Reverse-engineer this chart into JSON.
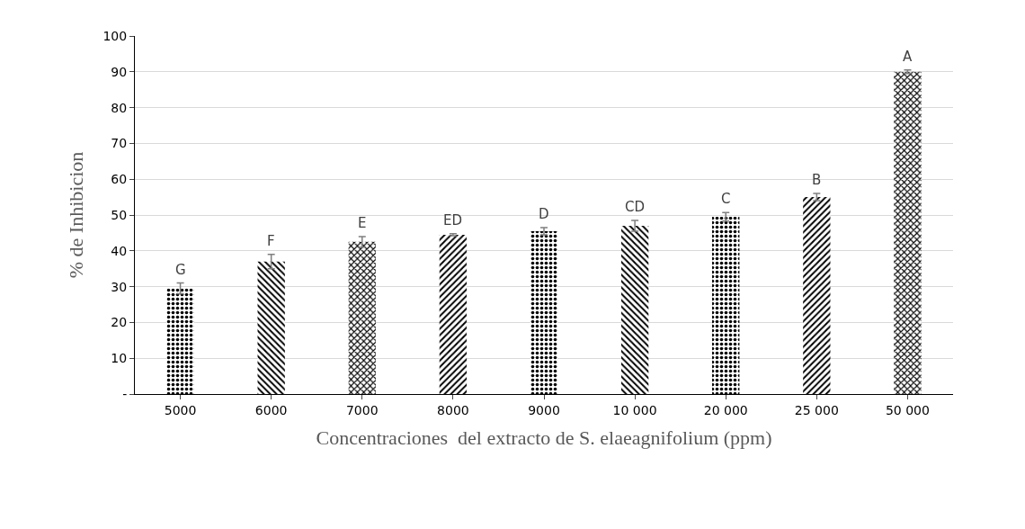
{
  "chart_data": {
    "type": "bar",
    "ylabel": "% de Inhibicion",
    "xlabel": "Concentraciones  del extracto de S. elaeagnifolium (ppm)",
    "categories": [
      "5000",
      "6000",
      "7000",
      "8000",
      "9000",
      "10 000",
      "20 000",
      "25 000",
      "50 000"
    ],
    "values": [
      29.5,
      37,
      42.5,
      44.5,
      45.5,
      47,
      49.5,
      55,
      90
    ],
    "errors": [
      1.5,
      2,
      1.5,
      0.3,
      1,
      1.5,
      1.2,
      1,
      0.5
    ],
    "value_labels": [
      "G",
      "F",
      "E",
      "ED",
      "D",
      "CD",
      "C",
      "B",
      "A"
    ],
    "color": "#000000",
    "ylim": [
      0,
      100
    ],
    "yticks": [
      {
        "value": 0,
        "label": "-"
      },
      10,
      20,
      30,
      40,
      50,
      60,
      70,
      80,
      90,
      100
    ],
    "grid": "y"
  }
}
